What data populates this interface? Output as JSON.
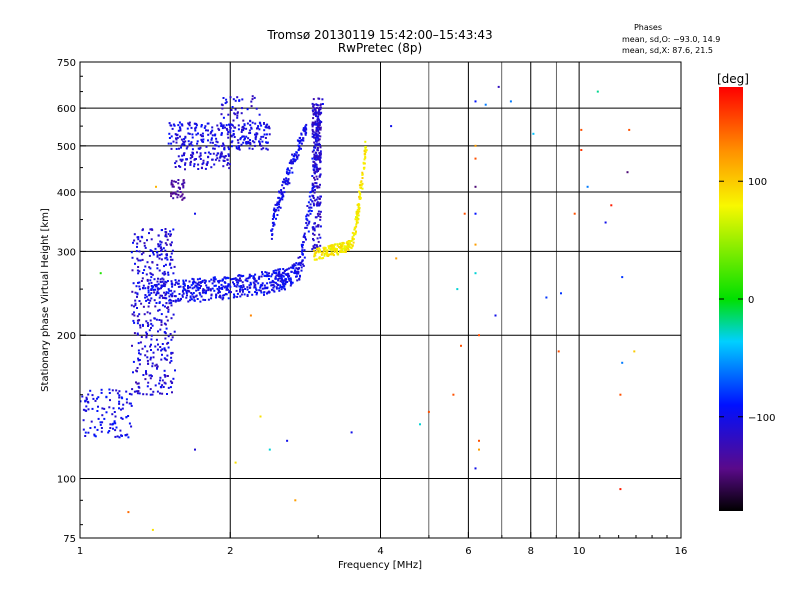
{
  "title": {
    "line1": "Tromsø 20130119 15:42:00–15:43:43",
    "line2": "RwPretec (8p)"
  },
  "stats": {
    "header": "Phases",
    "line1": "mean, sd,O: −93.0, 14.9",
    "line2": "mean, sd,X:  87.6, 21.5"
  },
  "colorbar": {
    "label": "[deg]",
    "ticks": [
      {
        "value": 100,
        "label": "100"
      },
      {
        "value": 0,
        "label": "0"
      },
      {
        "value": -100,
        "label": "−100"
      }
    ],
    "range": [
      -180,
      180
    ]
  },
  "chart_data": {
    "type": "scatter",
    "xlabel": "Frequency [MHz]",
    "ylabel": "Stationary phase Virtual Height [km]",
    "xscale": "log",
    "yscale": "log",
    "xlim": [
      1,
      16
    ],
    "ylim": [
      75,
      750
    ],
    "xticks": [
      {
        "value": 1,
        "label": "1"
      },
      {
        "value": 2,
        "label": "2"
      },
      {
        "value": 4,
        "label": "4"
      },
      {
        "value": 6,
        "label": "6"
      },
      {
        "value": 8,
        "label": "8"
      },
      {
        "value": 10,
        "label": "10"
      },
      {
        "value": 16,
        "label": "16"
      }
    ],
    "yticks": [
      {
        "value": 75,
        "label": "75"
      },
      {
        "value": 100,
        "label": "100"
      },
      {
        "value": 200,
        "label": "200"
      },
      {
        "value": 300,
        "label": "300"
      },
      {
        "value": 400,
        "label": "400"
      },
      {
        "value": 500,
        "label": "500"
      },
      {
        "value": 600,
        "label": "600"
      },
      {
        "value": 750,
        "label": "750"
      }
    ],
    "major_grid_x": [
      2,
      4,
      6,
      8,
      10
    ],
    "minor_grid_x": [
      5,
      7,
      9
    ],
    "grid_y": [
      100,
      200,
      300,
      400,
      500,
      600
    ],
    "colorscale": "phase in degrees, rainbow from -180 (black/purple) to 180 (red)",
    "traces": [
      {
        "label": "E-region low band",
        "x_range": [
          1.0,
          1.27
        ],
        "height_range": [
          120,
          160
        ],
        "phase": -105
      },
      {
        "label": "F1 vertical rise",
        "x_range": [
          1.27,
          1.55
        ],
        "height_range": [
          150,
          340
        ],
        "phase": -110
      },
      {
        "label": "F-layer O-mode",
        "x_range": [
          1.35,
          3.05
        ],
        "height_start": 255,
        "height_end": 610,
        "phase": -100
      },
      {
        "label": "F-layer O-mode upper",
        "x_range": [
          1.5,
          3.0
        ],
        "height_range": [
          480,
          640
        ],
        "phase": -110
      },
      {
        "label": "F-layer X-mode",
        "x_range": [
          2.95,
          3.75
        ],
        "height_start": 295,
        "height_end": 500,
        "phase": 90
      }
    ]
  }
}
